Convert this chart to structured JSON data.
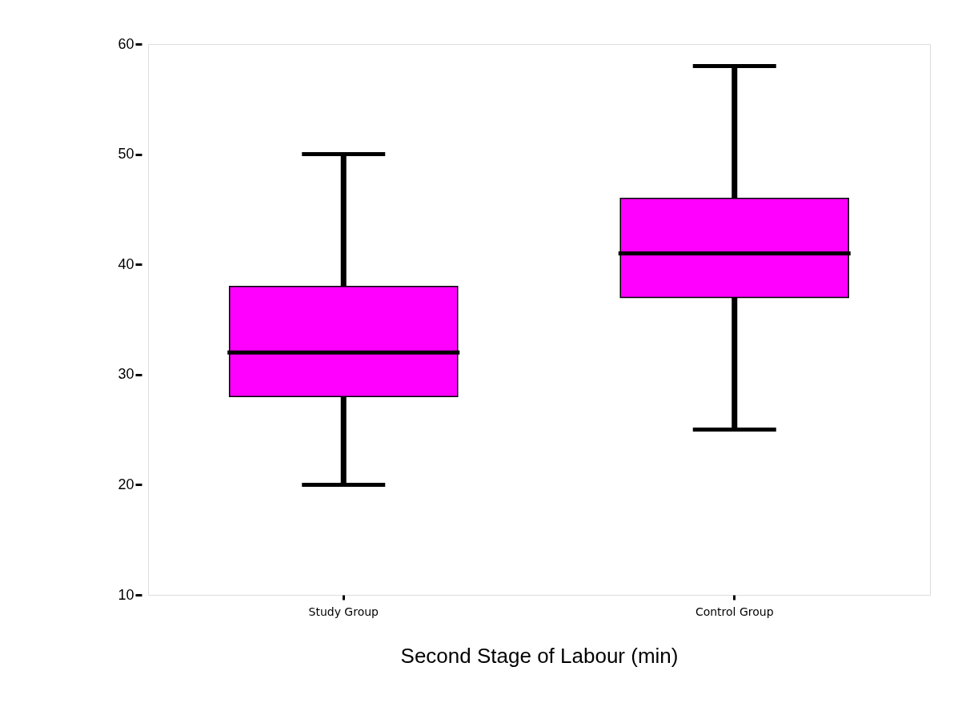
{
  "chart_data": {
    "type": "box",
    "xlabel": "Second Stage of Labour (min)",
    "categories": [
      "Study Group",
      "Control Group"
    ],
    "boxes": [
      {
        "low": 20,
        "q1": 28,
        "median": 32,
        "q3": 38,
        "high": 50
      },
      {
        "low": 25,
        "q1": 37,
        "median": 41,
        "q3": 46,
        "high": 58
      }
    ],
    "color": "#ff00ff",
    "ylim": [
      10,
      60
    ],
    "yticks": [
      10,
      20,
      30,
      40,
      50,
      60
    ],
    "grid": false
  }
}
